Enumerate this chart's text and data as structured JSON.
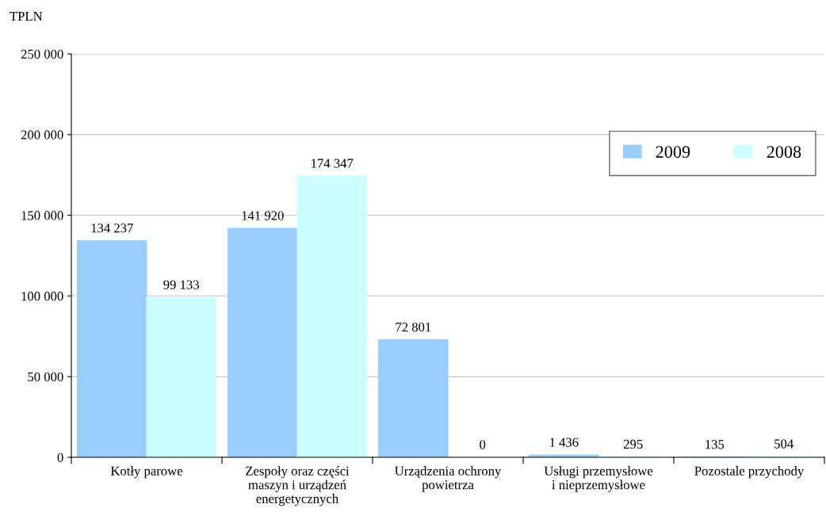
{
  "chart_data": {
    "type": "bar",
    "ylabel": "TPLN",
    "categories": [
      "Kotły parowe",
      "Zespoły oraz części\nmaszyn i urządzeń\nenergetycznych",
      "Urządzenia ochrony\npowietrza",
      "Usługi przemysłowe\ni nieprzemysłowe",
      "Pozostale przychody"
    ],
    "series": [
      {
        "name": "2009",
        "color": "#99ccff",
        "values": [
          134237,
          141920,
          72801,
          1436,
          135
        ],
        "value_labels": [
          "134 237",
          "141 920",
          "72 801",
          "1 436",
          "135"
        ]
      },
      {
        "name": "2008",
        "color": "#ccffff",
        "values": [
          99133,
          174347,
          0,
          295,
          504
        ],
        "value_labels": [
          "99 133",
          "174 347",
          "0",
          "295",
          "504"
        ]
      }
    ],
    "ylim": [
      0,
      250000
    ],
    "yticks": [
      {
        "value": 0,
        "label": "0"
      },
      {
        "value": 50000,
        "label": "50 000"
      },
      {
        "value": 100000,
        "label": "100 000"
      },
      {
        "value": 150000,
        "label": "150 000"
      },
      {
        "value": 200000,
        "label": "200 000"
      },
      {
        "value": 250000,
        "label": "250 000"
      }
    ],
    "grid": "y",
    "legend": "top right"
  }
}
